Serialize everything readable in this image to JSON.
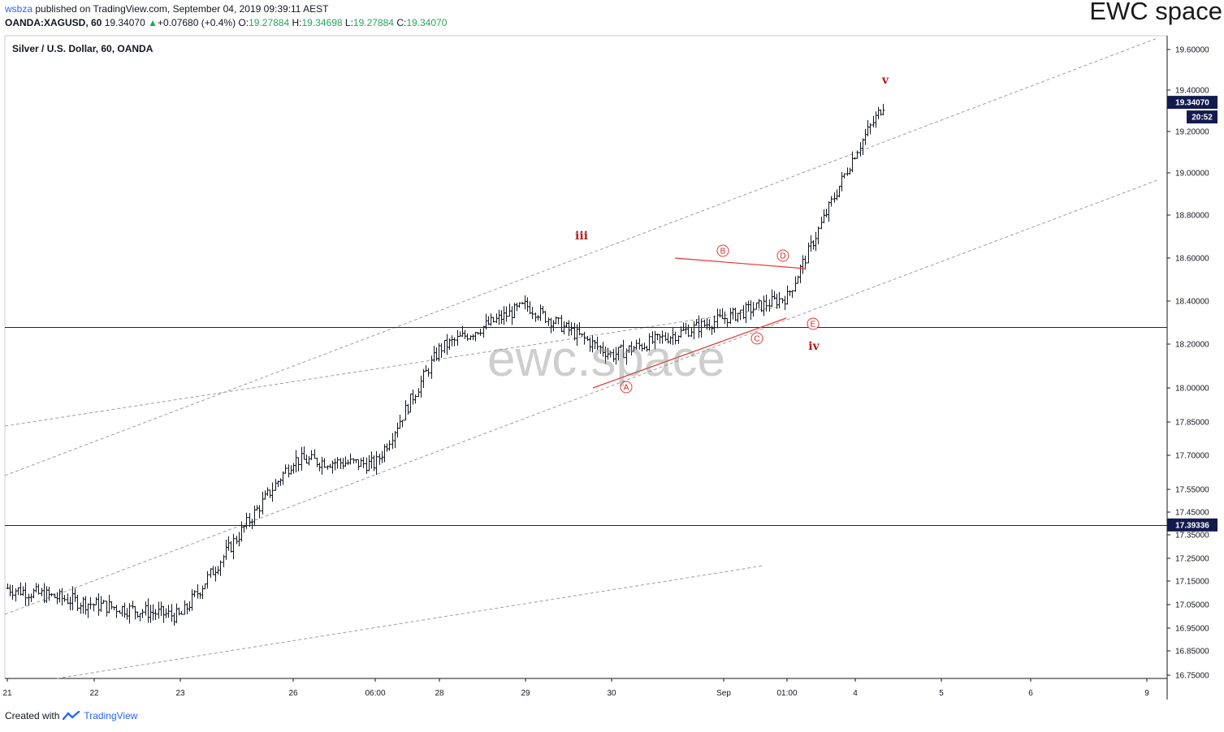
{
  "header": {
    "user": "wsbza",
    "published_text": " published on TradingView.com, September 04, 2019 09:39:11 AEST",
    "symbol": "OANDA:XAGUSD, 60",
    "last_price": "19.34070",
    "change_arrow": "▲",
    "change": "+0.07680 (+0.4%)",
    "o_label": "O:",
    "o_value": "19.27884",
    "h_label": "H:",
    "h_value": "19.34698",
    "l_label": "L:",
    "l_value": "19.27884",
    "c_label": "C:",
    "c_value": "19.34070"
  },
  "brand": "EWC space",
  "footer": {
    "created_with": "Created with",
    "tradingview": "TradingView"
  },
  "colors": {
    "bar": "#131722",
    "hline": "#0d1aa8",
    "channel": "#9e9e9e",
    "wave": "#b71c1c",
    "triangle": "#e53935",
    "badge": "#131a4e"
  },
  "chart_data": {
    "type": "bar",
    "title": "Silver / U.S. Dollar, 60, OANDA",
    "watermark": "ewc.space",
    "y_axis": {
      "ticks": [
        "19.60000",
        "19.40000",
        "19.20000",
        "19.00000",
        "18.80000",
        "18.60000",
        "18.40000",
        "18.20000",
        "18.00000",
        "17.85000",
        "17.70000",
        "17.55000",
        "17.45000",
        "17.35000",
        "17.25000",
        "17.15000",
        "17.05000",
        "16.95000",
        "16.85000",
        "16.75000"
      ]
    },
    "x_axis": {
      "ticks": [
        "21",
        "22",
        "23",
        "26",
        "06:00",
        "28",
        "29",
        "30",
        "Sep",
        "01:00",
        "4",
        "5",
        "6",
        "9"
      ]
    },
    "price_badges": [
      {
        "label": "19.34070"
      },
      {
        "label": "20:52"
      },
      {
        "label": "17.39336"
      }
    ],
    "horizontal_levels": [
      18.28,
      17.39336
    ],
    "wave_labels": [
      "iii",
      "iv",
      "v"
    ],
    "triangle_points": [
      "A",
      "B",
      "C",
      "D",
      "E"
    ],
    "ohlc_path": [
      [
        "21",
        17.12
      ],
      [
        "22",
        17.05
      ],
      [
        "23",
        17.0
      ],
      [
        "26",
        17.68
      ],
      [
        "06:00",
        17.66
      ],
      [
        "28",
        18.18
      ],
      [
        "29",
        18.38
      ],
      [
        "30",
        18.15
      ],
      [
        "Sep",
        18.32
      ],
      [
        "01:00",
        18.42
      ],
      [
        "4",
        19.1
      ],
      [
        "4",
        19.34
      ]
    ]
  }
}
